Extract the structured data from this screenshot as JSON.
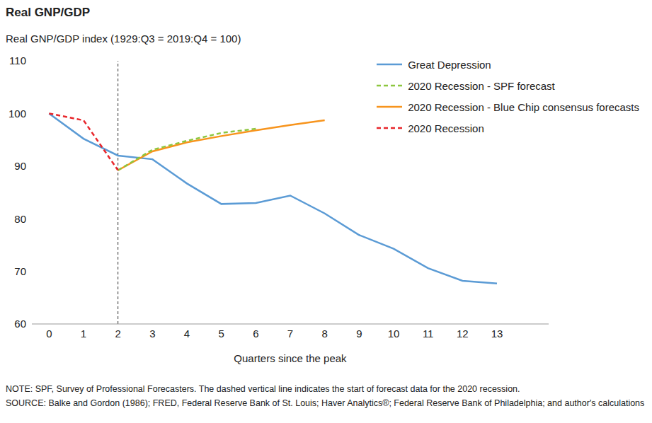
{
  "chart_data": {
    "type": "line",
    "title": "Real GNP/GDP",
    "subtitle": "Real GNP/GDP index (1929:Q3 = 2019:Q4 = 100)",
    "xlabel": "Quarters since the peak",
    "xlim": [
      -0.5,
      14.5
    ],
    "xticks": [
      0,
      1,
      2,
      3,
      4,
      5,
      6,
      7,
      8,
      9,
      10,
      11,
      12,
      13
    ],
    "ylim": [
      60,
      110
    ],
    "yticks": [
      60,
      70,
      80,
      90,
      100,
      110
    ],
    "grid": false,
    "legend": "upper right",
    "forecast_start_x": 2,
    "series": [
      {
        "name": "Great Depression",
        "color": "#5b9bd5",
        "line_style": "solid",
        "x": [
          0,
          1,
          2,
          3,
          4,
          5,
          6,
          7,
          8,
          9,
          10,
          11,
          12,
          13
        ],
        "values": [
          100,
          95.2,
          92,
          91.3,
          86.7,
          82.8,
          83,
          84.4,
          81,
          76.9,
          74.3,
          70.6,
          68.2,
          67.7
        ]
      },
      {
        "name": "2020 Recession - SPF forecast",
        "color": "#8dc63f",
        "line_style": "dashed",
        "x": [
          2,
          3,
          4,
          5,
          6
        ],
        "values": [
          89.2,
          93.1,
          94.8,
          96.3,
          97.1
        ]
      },
      {
        "name": "2020 Recession - Blue Chip consensus forecasts",
        "color": "#f7941d",
        "line_style": "solid",
        "x": [
          2,
          3,
          4,
          5,
          6,
          7,
          8
        ],
        "values": [
          89.2,
          92.8,
          94.5,
          95.7,
          96.8,
          97.8,
          98.7
        ]
      },
      {
        "name": "2020 Recession",
        "color": "#e8262b",
        "line_style": "dashed",
        "x": [
          0,
          1,
          2
        ],
        "values": [
          100,
          98.7,
          89.2
        ]
      }
    ],
    "note": "NOTE: SPF, Survey of Professional Forecasters. The dashed vertical line indicates the start of forecast data for the 2020 recession.",
    "source": "SOURCE: Balke and Gordon (1986); FRED, Federal Reserve Bank of St. Louis; Haver Analytics®; Federal Reserve Bank of Philadelphia; and author's calculations"
  }
}
